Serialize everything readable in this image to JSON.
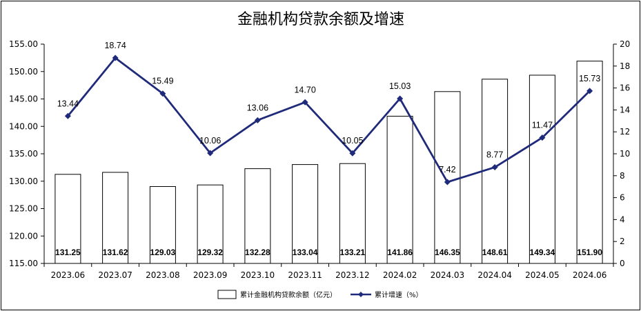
{
  "chart_data": {
    "type": "bar",
    "title": "金融机构贷款余额及增速",
    "categories": [
      "2023.06",
      "2023.07",
      "2023.08",
      "2023.09",
      "2023.10",
      "2023.11",
      "2023.12",
      "2024.02",
      "2024.03",
      "2024.04",
      "2024.05",
      "2024.06"
    ],
    "series": [
      {
        "name": "累计金融机构贷款余额（亿元）",
        "type": "bar",
        "axis": "left",
        "values": [
          131.25,
          131.62,
          129.03,
          129.32,
          132.28,
          133.04,
          133.21,
          141.86,
          146.35,
          148.61,
          149.34,
          151.9
        ],
        "labels": [
          "131.25",
          "131.62",
          "129.03",
          "129.32",
          "132.28",
          "133.04",
          "133.21",
          "141.86",
          "146.35",
          "148.61",
          "149.34",
          "151.90"
        ]
      },
      {
        "name": "累计增速（%）",
        "type": "line",
        "axis": "right",
        "values": [
          13.44,
          18.74,
          15.49,
          10.06,
          13.06,
          14.7,
          10.05,
          15.03,
          7.42,
          8.77,
          11.47,
          15.73
        ],
        "labels": [
          "13.44",
          "18.74",
          "15.49",
          "10.06",
          "13.06",
          "14.70",
          "10.05",
          "15.03",
          "7.42",
          "8.77",
          "11.47",
          "15.73"
        ],
        "color": "#1f2a7a"
      }
    ],
    "y_left": {
      "ylim": [
        115,
        155
      ],
      "ticks": [
        "115.00",
        "120.00",
        "125.00",
        "130.00",
        "135.00",
        "140.00",
        "145.00",
        "150.00",
        "155.00"
      ]
    },
    "y_right": {
      "ylim": [
        0,
        20
      ],
      "ticks": [
        "0",
        "2",
        "4",
        "6",
        "8",
        "10",
        "12",
        "14",
        "16",
        "18",
        "20"
      ]
    },
    "grid": false,
    "legend_position": "bottom"
  }
}
